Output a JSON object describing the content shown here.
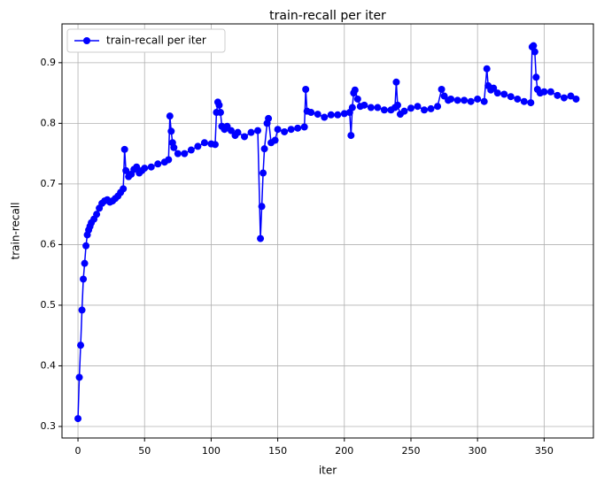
{
  "chart_data": {
    "type": "line",
    "title": "train-recall per iter",
    "xlabel": "iter",
    "ylabel": "train-recall",
    "series": [
      {
        "name": "train-recall per iter",
        "color": "#0000ff",
        "x": [
          0,
          1,
          2,
          3,
          4,
          5,
          6,
          7,
          8,
          9,
          10,
          12,
          14,
          16,
          18,
          20,
          22,
          24,
          26,
          28,
          30,
          32,
          34,
          35,
          36,
          38,
          40,
          42,
          44,
          46,
          48,
          50,
          55,
          60,
          65,
          68,
          69,
          70,
          71,
          72,
          75,
          80,
          85,
          90,
          95,
          100,
          103,
          104,
          105,
          106,
          107,
          108,
          110,
          112,
          115,
          118,
          120,
          125,
          130,
          135,
          137,
          138,
          139,
          140,
          142,
          143,
          145,
          148,
          150,
          155,
          160,
          165,
          170,
          171,
          172,
          175,
          180,
          185,
          190,
          195,
          200,
          204,
          205,
          206,
          207,
          208,
          210,
          212,
          215,
          220,
          225,
          230,
          235,
          238,
          239,
          240,
          242,
          245,
          250,
          255,
          260,
          265,
          270,
          273,
          275,
          278,
          280,
          285,
          290,
          295,
          300,
          305,
          307,
          308,
          310,
          312,
          315,
          320,
          325,
          330,
          335,
          340,
          341,
          342,
          343,
          344,
          345,
          347,
          350,
          355,
          360,
          365,
          370,
          374
        ],
        "values": [
          0.313,
          0.381,
          0.434,
          0.492,
          0.543,
          0.569,
          0.598,
          0.616,
          0.624,
          0.63,
          0.636,
          0.642,
          0.65,
          0.66,
          0.668,
          0.672,
          0.674,
          0.67,
          0.672,
          0.676,
          0.68,
          0.686,
          0.692,
          0.757,
          0.722,
          0.712,
          0.716,
          0.724,
          0.728,
          0.718,
          0.722,
          0.726,
          0.728,
          0.733,
          0.736,
          0.74,
          0.812,
          0.787,
          0.768,
          0.76,
          0.75,
          0.75,
          0.756,
          0.762,
          0.768,
          0.766,
          0.765,
          0.818,
          0.835,
          0.83,
          0.818,
          0.795,
          0.79,
          0.795,
          0.788,
          0.78,
          0.785,
          0.778,
          0.785,
          0.788,
          0.61,
          0.663,
          0.718,
          0.758,
          0.8,
          0.808,
          0.768,
          0.772,
          0.79,
          0.786,
          0.79,
          0.792,
          0.794,
          0.856,
          0.82,
          0.818,
          0.815,
          0.81,
          0.814,
          0.814,
          0.816,
          0.818,
          0.78,
          0.826,
          0.85,
          0.855,
          0.84,
          0.828,
          0.83,
          0.826,
          0.826,
          0.822,
          0.822,
          0.826,
          0.868,
          0.83,
          0.815,
          0.82,
          0.825,
          0.828,
          0.822,
          0.824,
          0.828,
          0.856,
          0.845,
          0.838,
          0.84,
          0.838,
          0.838,
          0.836,
          0.84,
          0.836,
          0.89,
          0.862,
          0.855,
          0.858,
          0.85,
          0.848,
          0.844,
          0.84,
          0.836,
          0.834,
          0.926,
          0.928,
          0.918,
          0.876,
          0.856,
          0.85,
          0.852,
          0.852,
          0.846,
          0.842,
          0.845,
          0.84
        ]
      }
    ],
    "xlim": [
      -12,
      387
    ],
    "xticks": [
      0,
      50,
      100,
      150,
      200,
      250,
      300,
      350
    ],
    "ylim": [
      0.281,
      0.964
    ],
    "yticks": [
      0.3,
      0.4,
      0.5,
      0.6,
      0.7,
      0.8,
      0.9
    ],
    "grid": true,
    "legend": "upper left"
  }
}
